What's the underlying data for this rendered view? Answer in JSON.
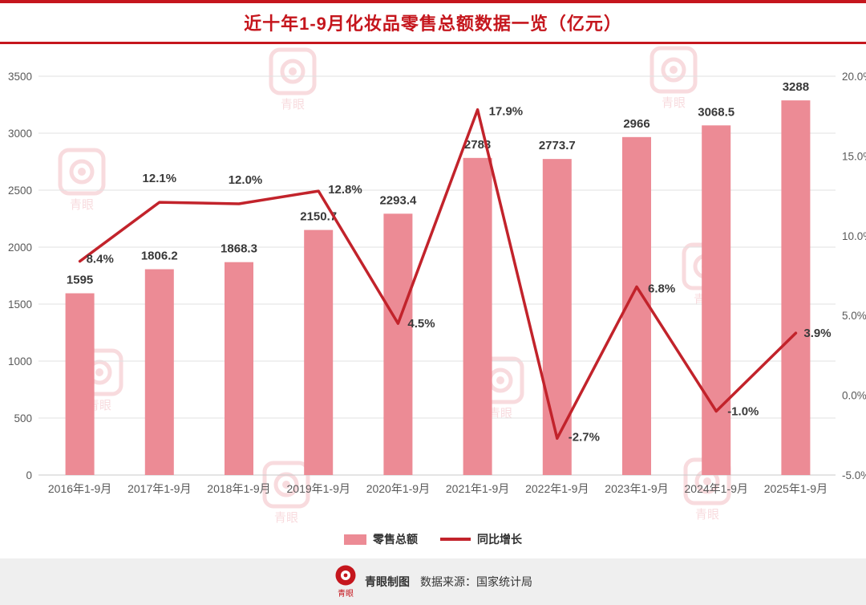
{
  "header": {
    "title": "近十年1-9月化妆品零售总额数据一览（亿元）",
    "accent_color": "#c5161d"
  },
  "chart_data": {
    "type": "bar+line",
    "title": "近十年1-9月化妆品零售总额数据一览（亿元）",
    "categories": [
      "2016年1-9月",
      "2017年1-9月",
      "2018年1-9月",
      "2019年1-9月",
      "2020年1-9月",
      "2021年1-9月",
      "2022年1-9月",
      "2023年1-9月",
      "2024年1-9月",
      "2025年1-9月"
    ],
    "series": [
      {
        "name": "零售总额",
        "type": "bar",
        "axis": "left",
        "color": "#ec8b95",
        "values": [
          1595,
          1806.2,
          1868.3,
          2150.7,
          2293.4,
          2783,
          2773.7,
          2966,
          3068.5,
          3288
        ]
      },
      {
        "name": "同比增长",
        "type": "line",
        "axis": "right",
        "color": "#c2232b",
        "values": [
          8.4,
          12.1,
          12.0,
          12.8,
          4.5,
          17.9,
          -2.7,
          6.8,
          -1.0,
          3.9
        ]
      }
    ],
    "bar_labels": [
      "1595",
      "1806.2",
      "1868.3",
      "2150.7",
      "2293.4",
      "2783",
      "2773.7",
      "2966",
      "3068.5",
      "3288"
    ],
    "line_labels": [
      "8.4%",
      "12.1%",
      "12.0%",
      "12.8%",
      "4.5%",
      "17.9%",
      "-2.7%",
      "6.8%",
      "-1.0%",
      "3.9%"
    ],
    "left_axis": {
      "min": 0,
      "max": 3500,
      "step": 500,
      "ticks": [
        "0",
        "500",
        "1000",
        "1500",
        "2000",
        "2500",
        "3000",
        "3500"
      ]
    },
    "right_axis": {
      "min": -5,
      "max": 20,
      "step": 5,
      "ticks": [
        "-5.0%",
        "0.0%",
        "5.0%",
        "10.0%",
        "15.0%",
        "20.0%"
      ]
    },
    "grid": true,
    "legend_position": "bottom"
  },
  "legend": {
    "bar_label": "零售总额",
    "line_label": "同比增长"
  },
  "footer": {
    "credit": "青眼制图",
    "source": "数据来源：国家统计局",
    "logo_text": "青眼"
  },
  "watermark": {
    "text": "青眼",
    "color": "#f2b9be"
  }
}
